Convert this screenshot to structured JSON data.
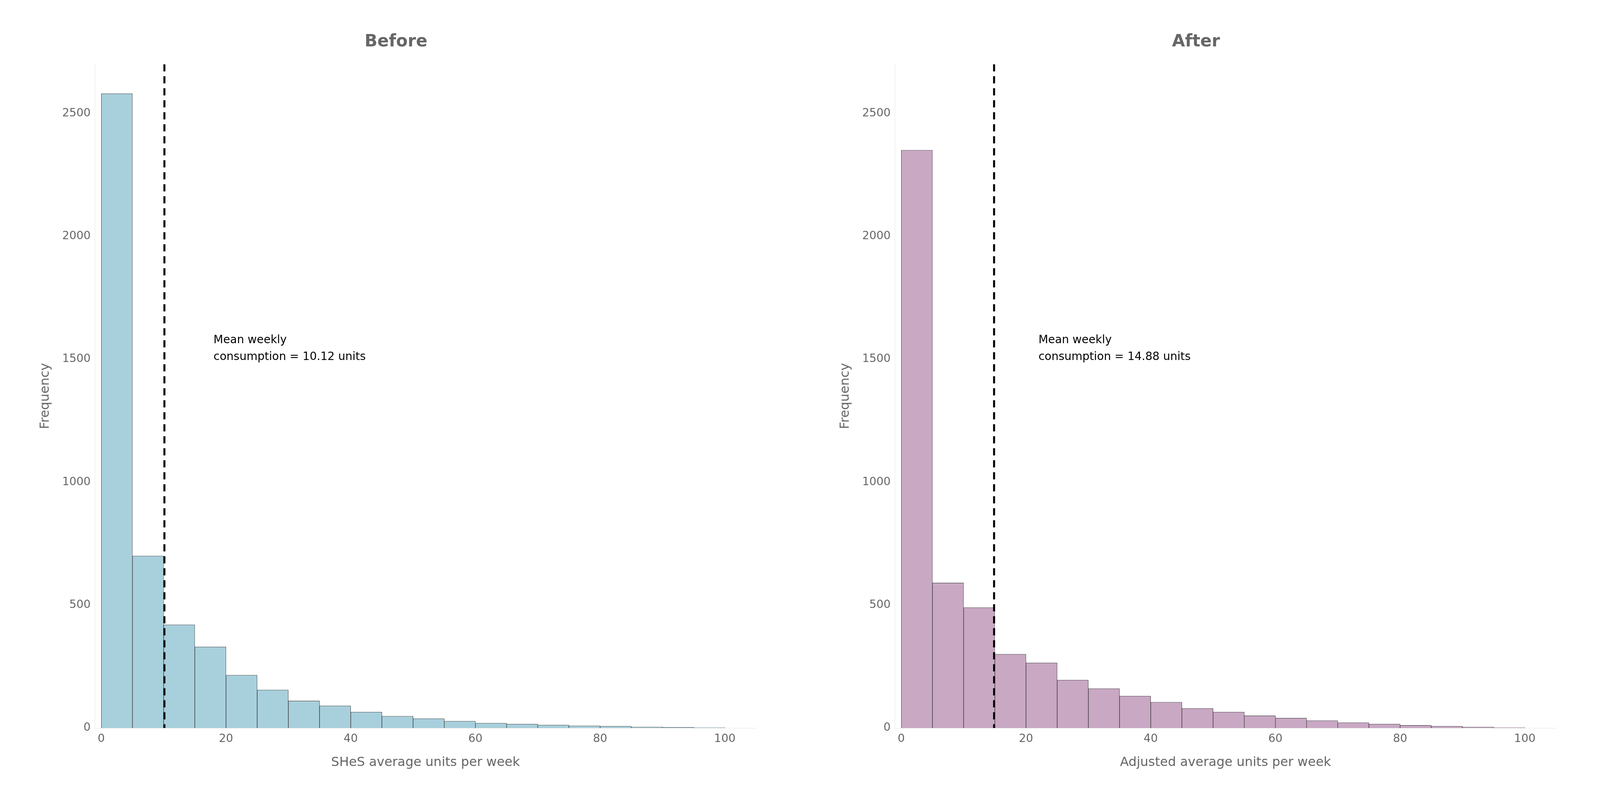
{
  "chart_data": [
    {
      "type": "histogram",
      "title": "Before",
      "x_label": "SHeS average units per week",
      "y_label": "Frequency",
      "bins": [
        0,
        5,
        10,
        15,
        20,
        25,
        30,
        35,
        40,
        45,
        50,
        55,
        60,
        65,
        70,
        75,
        80,
        85,
        90,
        95,
        100
      ],
      "counts": [
        2580,
        700,
        420,
        330,
        215,
        155,
        110,
        90,
        65,
        48,
        38,
        28,
        20,
        16,
        12,
        9,
        7,
        4,
        3,
        2
      ],
      "color": "#a8d0dc",
      "mean_line": 10.12,
      "annotations": [
        {
          "text": "Mean weekly\nconsumption = 10.12 units",
          "x": 18,
          "y": 1600
        }
      ],
      "xlim": [
        -1,
        105
      ],
      "xticks": [
        0,
        20,
        40,
        60,
        80,
        100
      ],
      "ylim": [
        0,
        2700
      ],
      "yticks": [
        0,
        500,
        1000,
        1500,
        2000,
        2500
      ],
      "grid": false
    },
    {
      "type": "histogram",
      "title": "After",
      "x_label": "Adjusted average units per week",
      "y_label": "Frequency",
      "bins": [
        0,
        5,
        10,
        15,
        20,
        25,
        30,
        35,
        40,
        45,
        50,
        55,
        60,
        65,
        70,
        75,
        80,
        85,
        90,
        95,
        100
      ],
      "counts": [
        2350,
        590,
        490,
        300,
        265,
        195,
        160,
        130,
        105,
        80,
        65,
        50,
        40,
        30,
        22,
        16,
        11,
        7,
        4,
        2
      ],
      "color": "#c9a8c4",
      "mean_line": 14.88,
      "annotations": [
        {
          "text": "Mean weekly\nconsumption = 14.88 units",
          "x": 22,
          "y": 1600
        }
      ],
      "xlim": [
        -1,
        105
      ],
      "xticks": [
        0,
        20,
        40,
        60,
        80,
        100
      ],
      "ylim": [
        0,
        2700
      ],
      "yticks": [
        0,
        500,
        1000,
        1500,
        2000,
        2500
      ],
      "grid": false
    }
  ]
}
